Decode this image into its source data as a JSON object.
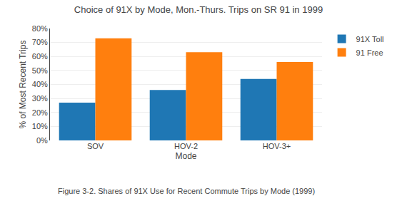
{
  "chart_data": {
    "type": "bar",
    "title": "Choice of 91X by Mode, Mon.-Thurs. Trips on SR 91 in 1999",
    "categories": [
      "SOV",
      "HOV-2",
      "HOV-3+"
    ],
    "series": [
      {
        "name": "91X Toll",
        "values": [
          0.27,
          0.36,
          0.44
        ]
      },
      {
        "name": "91 Free",
        "values": [
          0.73,
          0.63,
          0.56
        ]
      }
    ],
    "xlabel": "Mode",
    "ylabel": "% of Most Recent Trips",
    "ylim": [
      0,
      0.8
    ],
    "yticks": [
      {
        "value": 0.0,
        "label": "0%"
      },
      {
        "value": 0.1,
        "label": "10%"
      },
      {
        "value": 0.2,
        "label": "20%"
      },
      {
        "value": 0.3,
        "label": "30%"
      },
      {
        "value": 0.4,
        "label": "40%"
      },
      {
        "value": 0.5,
        "label": "50%"
      },
      {
        "value": 0.6,
        "label": "60%"
      },
      {
        "value": 0.7,
        "label": "70%"
      },
      {
        "value": 0.8,
        "label": "80%"
      }
    ],
    "annotations": [
      "Figure 3-2. Shares of 91X Use for Recent Commute Trips by Mode (1999)"
    ],
    "grid": true,
    "legend": "right"
  }
}
